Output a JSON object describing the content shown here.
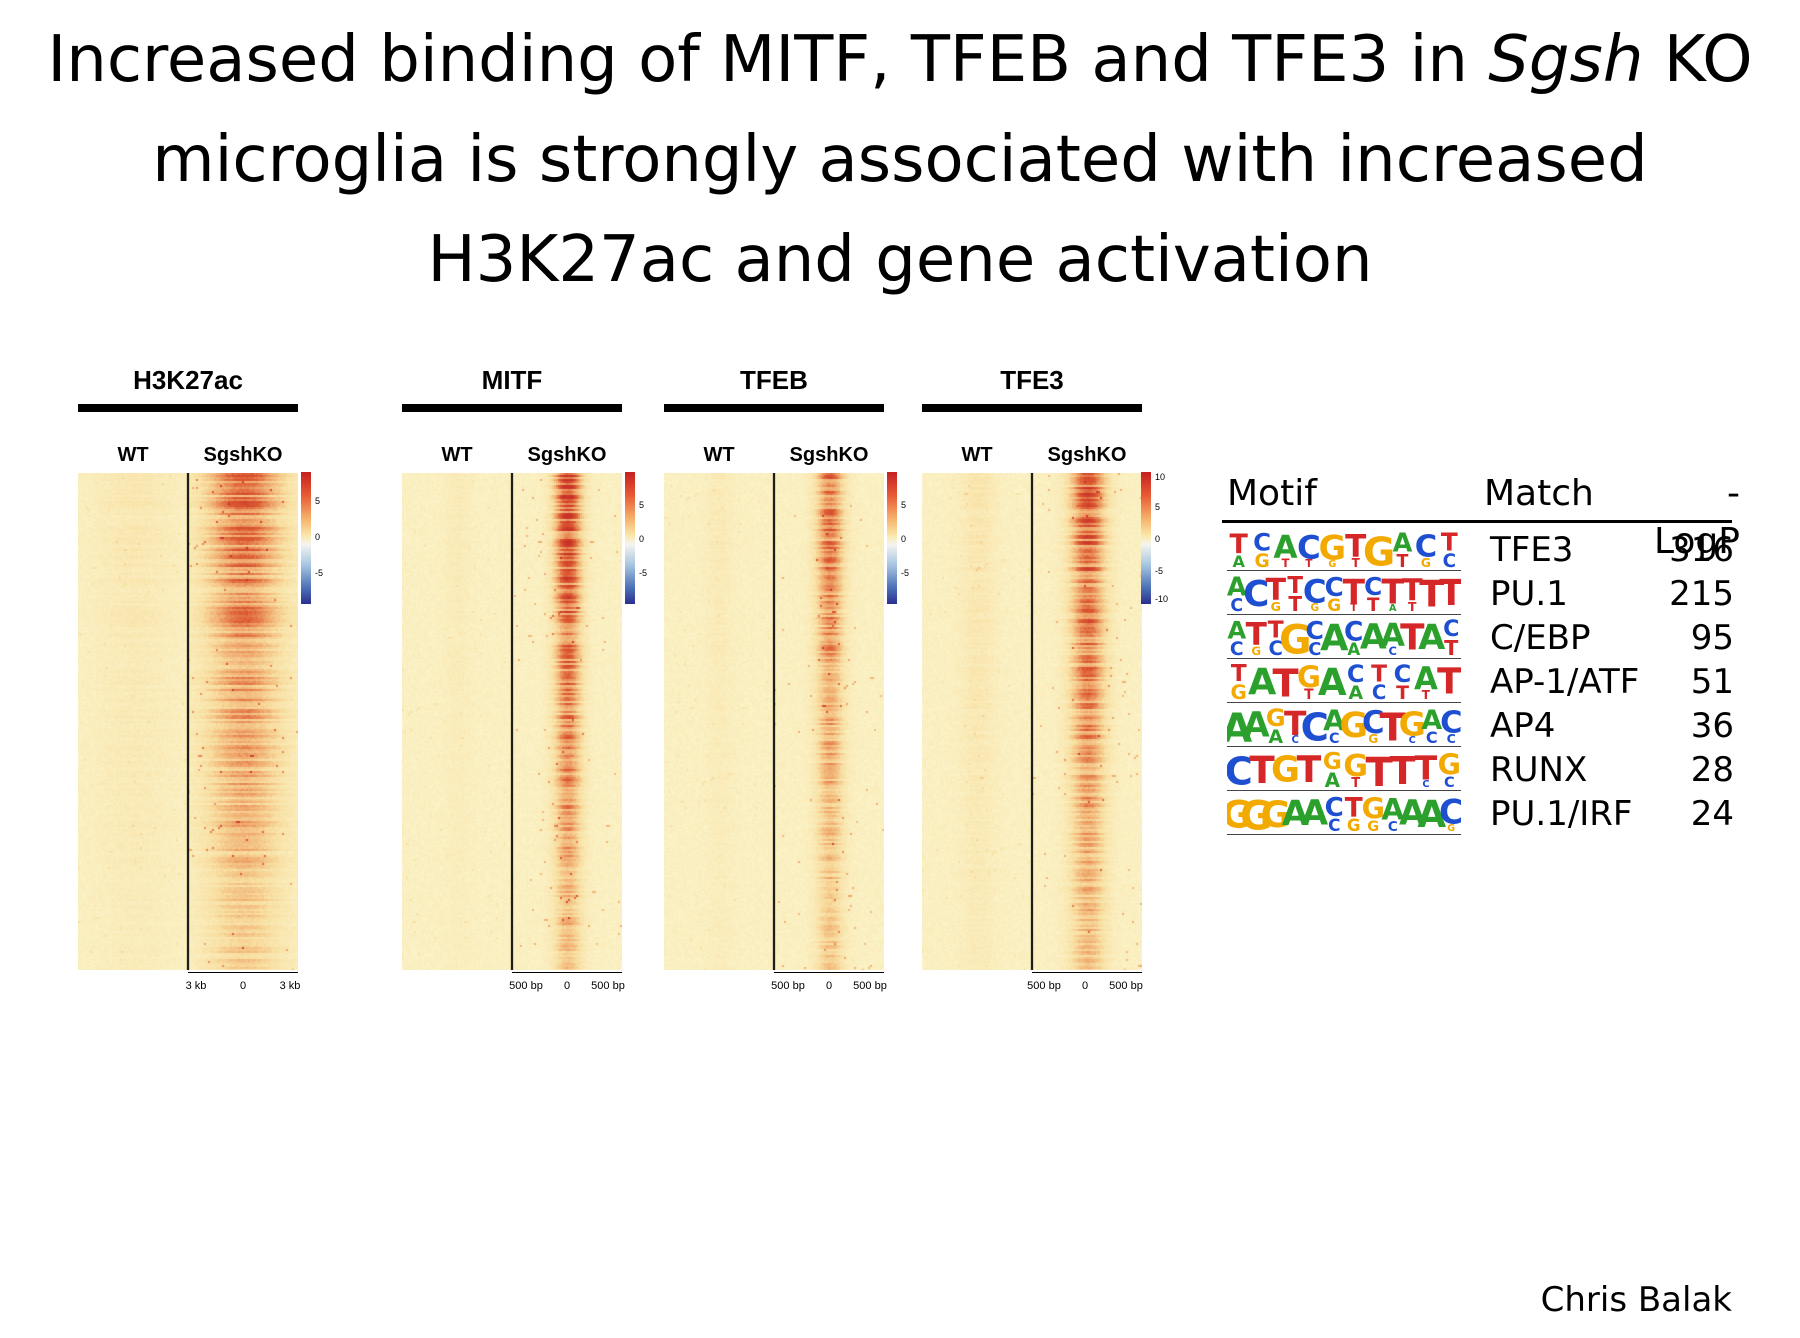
{
  "title": {
    "line1_pre": "Increased binding of MITF, TFEB and TFE3 in ",
    "line1_italic": "Sgsh",
    "line1_post": " KO",
    "line2": "microglia is strongly associated with increased",
    "line3": "H3K27ac and gene activation"
  },
  "panels": [
    {
      "name": "H3K27ac",
      "wt": "WT",
      "ko": "SgshKO",
      "ticks": [
        "3 kb",
        "0",
        "3 kb"
      ],
      "scale_labels": [
        "5",
        "0",
        "-5"
      ]
    },
    {
      "name": "MITF",
      "wt": "WT",
      "ko": "SgshKO",
      "ticks": [
        "500 bp",
        "0",
        "500 bp"
      ],
      "scale_labels": [
        "5",
        "0",
        "-5"
      ]
    },
    {
      "name": "TFEB",
      "wt": "WT",
      "ko": "SgshKO",
      "ticks": [
        "500 bp",
        "0",
        "500 bp"
      ],
      "scale_labels": [
        "5",
        "0",
        "-5"
      ]
    },
    {
      "name": "TFE3",
      "wt": "WT",
      "ko": "SgshKO",
      "ticks": [
        "500 bp",
        "0",
        "500 bp"
      ],
      "scale_labels": [
        "10",
        "5",
        "0",
        "-5",
        "-10"
      ]
    }
  ],
  "motifs": {
    "headers": {
      "motif": "Motif",
      "match": "Match",
      "logp": "-LogP"
    },
    "rows": [
      {
        "logo_icon": "sequence-logo-icon",
        "logo": "TCACGTGACT",
        "match": "TFE3",
        "logp": "316"
      },
      {
        "logo_icon": "sequence-logo-icon",
        "logo": "ACTTCCTCTTTT",
        "match": "PU.1",
        "logp": "215"
      },
      {
        "logo_icon": "sequence-logo-icon",
        "logo": "ATTGCACAATAC",
        "match": "C/EBP",
        "logp": "95"
      },
      {
        "logo_icon": "sequence-logo-icon",
        "logo": "TATGACTCAT",
        "match": "AP-1/ATF",
        "logp": "51"
      },
      {
        "logo_icon": "sequence-logo-icon",
        "logo": "AAGTCAGCTGAC",
        "match": "AP4",
        "logp": "36"
      },
      {
        "logo_icon": "sequence-logo-icon",
        "logo": "CTGTGGTTTG",
        "match": "RUNX",
        "logp": "28"
      },
      {
        "logo_icon": "sequence-logo-icon",
        "logo": "GGGAACTGAAAC",
        "match": "PU.1/IRF",
        "logp": "24"
      }
    ]
  },
  "author": "Chris Balak",
  "colors": {
    "A": "#2ca02c",
    "C": "#1f4fd1",
    "G": "#f2a900",
    "T": "#d62728",
    "heat_low": "#fbf3c8",
    "heat_high": "#d0421f"
  }
}
